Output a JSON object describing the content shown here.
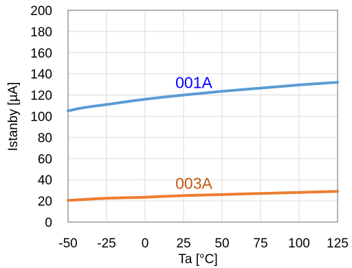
{
  "chart_data": {
    "type": "line",
    "xlabel": "Ta [°C]",
    "ylabel": "Istanby [µA]",
    "xlim": [
      -50,
      125
    ],
    "ylim": [
      0,
      200
    ],
    "xticks": [
      "-50",
      "-25",
      "0",
      "25",
      "50",
      "75",
      "100",
      "125"
    ],
    "yticks": [
      "0",
      "20",
      "40",
      "60",
      "80",
      "100",
      "120",
      "140",
      "160",
      "180",
      "200"
    ],
    "grid": true,
    "legend": "none",
    "series": [
      {
        "name": "001A",
        "color": "#5b9bd5",
        "label_color": "#0000ff",
        "x": [
          -50,
          -40,
          -25,
          0,
          25,
          50,
          75,
          100,
          125
        ],
        "y": [
          105,
          108,
          111,
          116,
          120,
          123.5,
          126.5,
          129.5,
          132
        ]
      },
      {
        "name": "003A",
        "color": "#ed7d31",
        "label_color": "#c55a11",
        "x": [
          -50,
          -25,
          0,
          25,
          50,
          75,
          100,
          125
        ],
        "y": [
          20.5,
          22.5,
          23.5,
          25,
          26,
          27,
          28,
          29
        ]
      }
    ]
  }
}
